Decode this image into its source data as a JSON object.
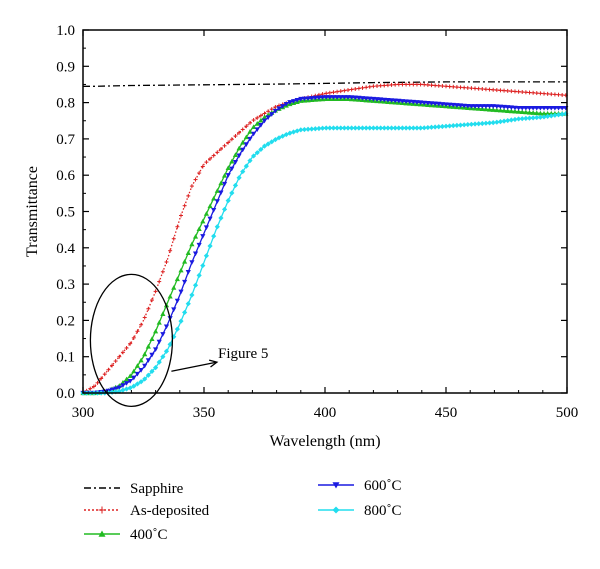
{
  "chart_data": {
    "type": "line",
    "xlabel": "Wavelength (nm)",
    "ylabel": "Transmittance",
    "xlim": [
      300,
      500
    ],
    "ylim": [
      0.0,
      1.0
    ],
    "xticks": [
      300,
      350,
      400,
      450,
      500
    ],
    "yticks": [
      "0.0",
      "0.1",
      "0.2",
      "0.3",
      "0.4",
      "0.5",
      "0.6",
      "0.7",
      "0.8",
      "0.9",
      "1.0"
    ],
    "legend_position": "below-plot",
    "annotation": {
      "text": "Figure 5",
      "ellipse_center": [
        320,
        0.145
      ],
      "arrow_to": [
        345,
        0.085
      ]
    },
    "series": [
      {
        "name": "Sapphire",
        "color": "#000000",
        "marker": "none",
        "dash": "dashdot",
        "x": [
          300,
          305,
          320,
          350,
          380,
          400,
          420,
          450,
          480,
          500
        ],
        "y": [
          0.845,
          0.845,
          0.847,
          0.849,
          0.851,
          0.853,
          0.855,
          0.857,
          0.857,
          0.857
        ]
      },
      {
        "name": "As-deposited",
        "color": "#dd2222",
        "marker": "plus",
        "dash": "dotted",
        "x": [
          300,
          305,
          310,
          315,
          320,
          325,
          330,
          335,
          340,
          345,
          350,
          355,
          360,
          365,
          370,
          375,
          380,
          390,
          400,
          410,
          420,
          430,
          440,
          450,
          460,
          470,
          480,
          490,
          500
        ],
        "y": [
          0.0,
          0.02,
          0.06,
          0.1,
          0.14,
          0.2,
          0.28,
          0.37,
          0.48,
          0.57,
          0.63,
          0.66,
          0.69,
          0.72,
          0.75,
          0.77,
          0.79,
          0.81,
          0.825,
          0.835,
          0.845,
          0.85,
          0.85,
          0.845,
          0.84,
          0.835,
          0.83,
          0.825,
          0.82
        ]
      },
      {
        "name": "400˚C",
        "color": "#22bb22",
        "marker": "triangle-up",
        "dash": "solid",
        "x": [
          300,
          305,
          310,
          315,
          320,
          325,
          330,
          335,
          340,
          345,
          350,
          355,
          360,
          365,
          370,
          375,
          380,
          385,
          390,
          400,
          410,
          420,
          430,
          440,
          450,
          460,
          470,
          480,
          490,
          500
        ],
        "y": [
          0.0,
          0.0,
          0.005,
          0.02,
          0.05,
          0.1,
          0.17,
          0.25,
          0.33,
          0.41,
          0.48,
          0.55,
          0.62,
          0.68,
          0.73,
          0.76,
          0.78,
          0.795,
          0.805,
          0.81,
          0.81,
          0.805,
          0.8,
          0.795,
          0.79,
          0.785,
          0.78,
          0.775,
          0.77,
          0.77
        ]
      },
      {
        "name": "600˚C",
        "color": "#1a1ae0",
        "marker": "triangle-down",
        "dash": "solid",
        "x": [
          300,
          305,
          310,
          315,
          320,
          325,
          330,
          335,
          340,
          345,
          350,
          355,
          360,
          365,
          370,
          375,
          380,
          385,
          390,
          400,
          410,
          420,
          430,
          440,
          450,
          460,
          470,
          480,
          490,
          500
        ],
        "y": [
          0.0,
          0.0,
          0.005,
          0.015,
          0.035,
          0.07,
          0.12,
          0.19,
          0.27,
          0.36,
          0.44,
          0.52,
          0.6,
          0.66,
          0.71,
          0.75,
          0.78,
          0.8,
          0.81,
          0.815,
          0.815,
          0.81,
          0.805,
          0.8,
          0.795,
          0.79,
          0.79,
          0.785,
          0.785,
          0.785
        ]
      },
      {
        "name": "800˚C",
        "color": "#22ddee",
        "marker": "diamond",
        "dash": "solid",
        "x": [
          300,
          305,
          310,
          315,
          320,
          325,
          330,
          335,
          340,
          345,
          350,
          355,
          360,
          365,
          370,
          375,
          380,
          385,
          390,
          400,
          410,
          420,
          430,
          440,
          450,
          460,
          470,
          480,
          490,
          500
        ],
        "y": [
          0.0,
          0.0,
          0.0,
          0.005,
          0.015,
          0.035,
          0.07,
          0.12,
          0.19,
          0.27,
          0.36,
          0.45,
          0.53,
          0.6,
          0.65,
          0.68,
          0.7,
          0.715,
          0.725,
          0.73,
          0.73,
          0.73,
          0.73,
          0.73,
          0.735,
          0.74,
          0.745,
          0.755,
          0.76,
          0.77
        ]
      }
    ]
  }
}
